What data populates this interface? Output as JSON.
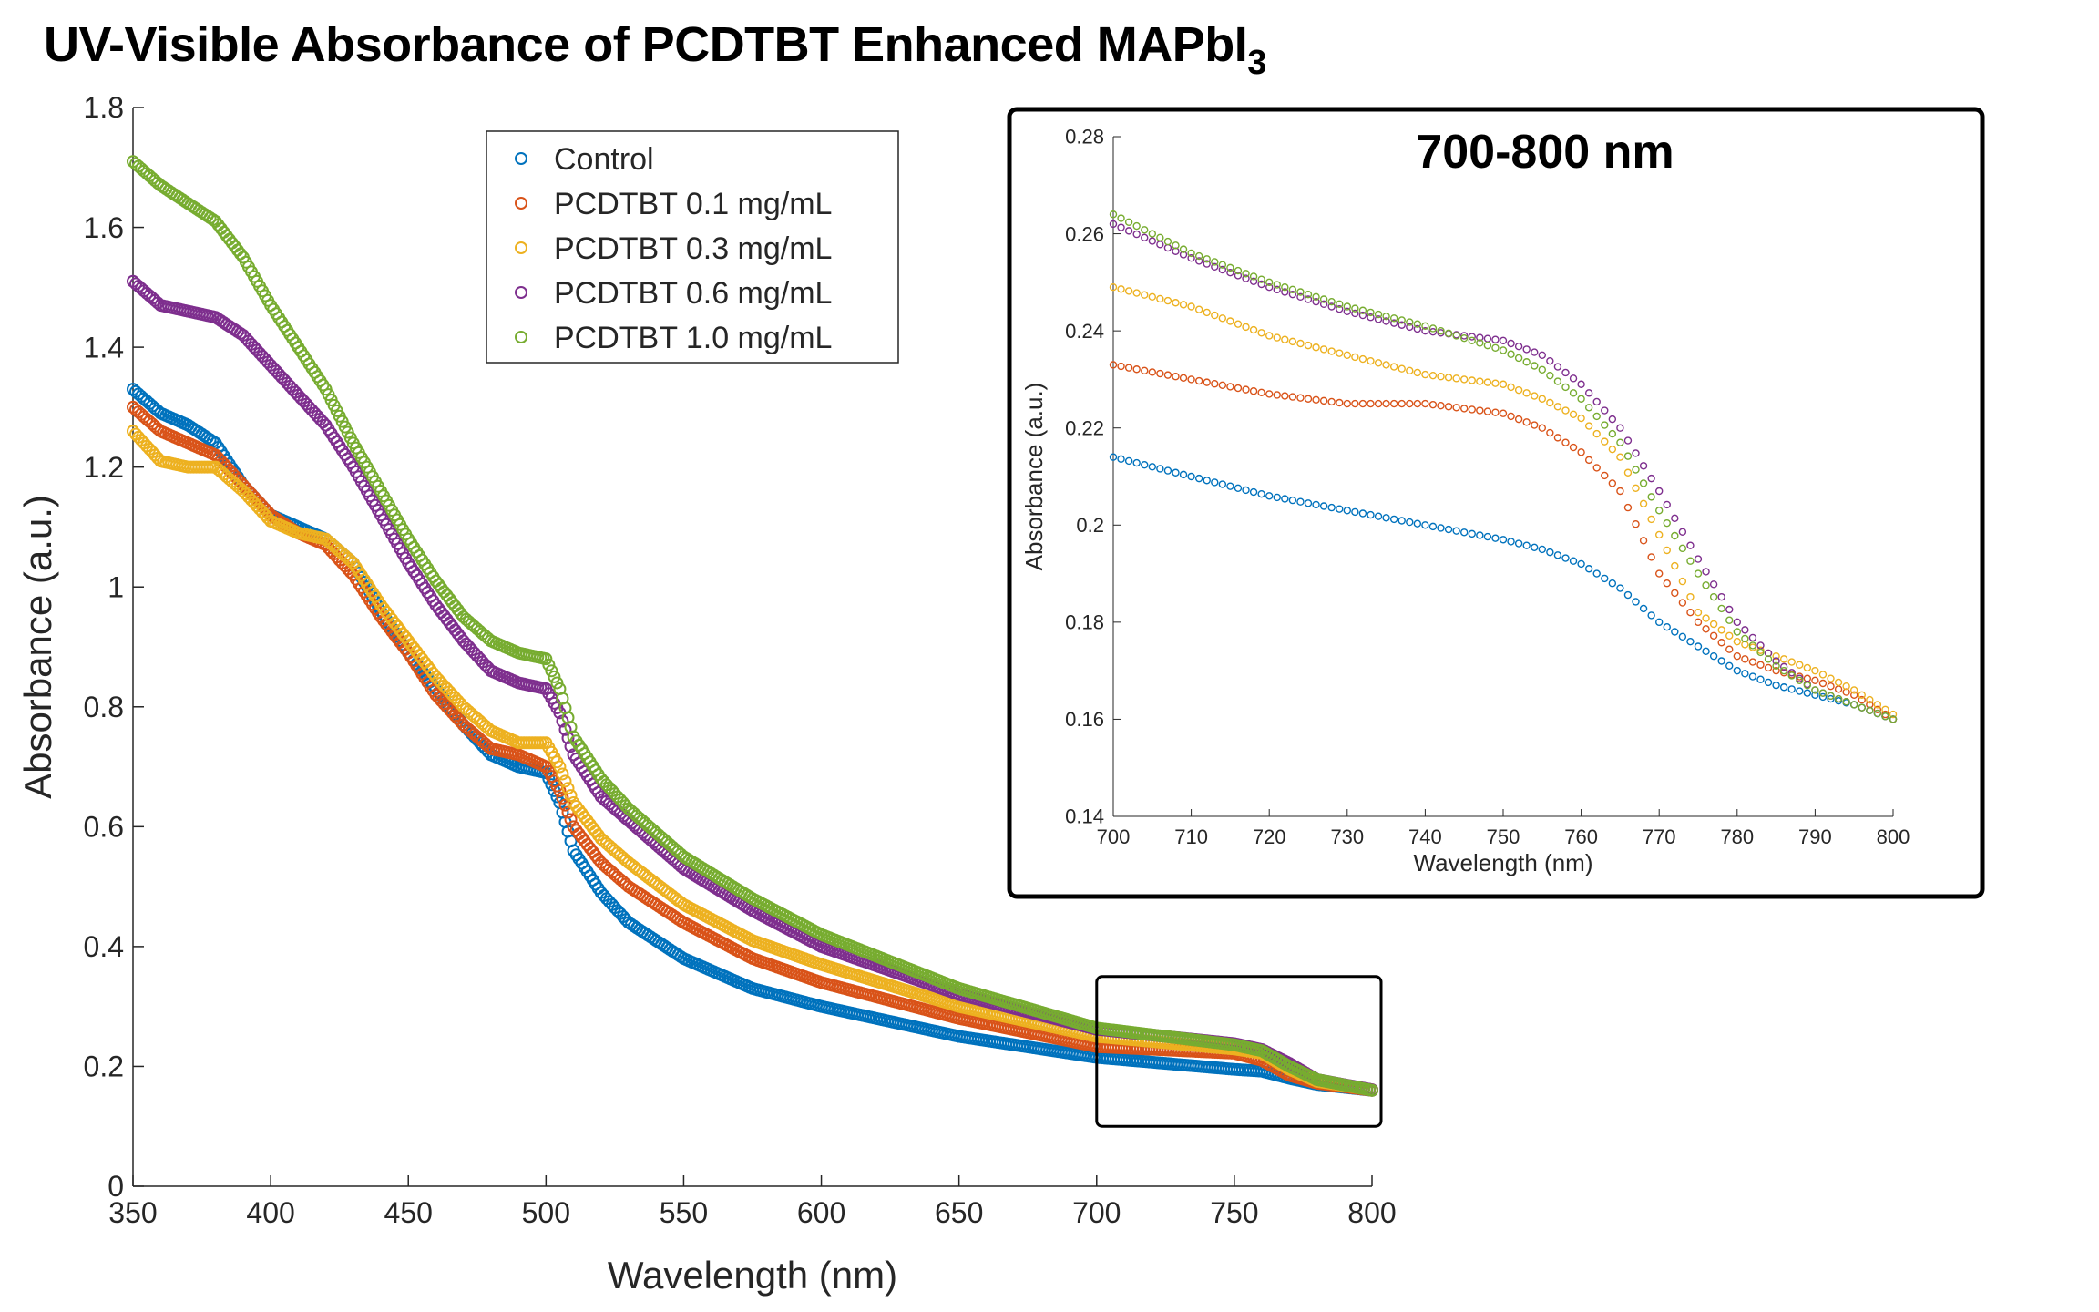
{
  "title": "UV-Visible Absorbance of PCDTBT Enhanced MAPbI",
  "title_subscript": "3",
  "colors": {
    "Control": "#0072BD",
    "PCDTBT 0.1 mg/mL": "#D95319",
    "PCDTBT 0.3 mg/mL": "#EDB120",
    "PCDTBT 0.6 mg/mL": "#7E2F8E",
    "PCDTBT 1.0 mg/mL": "#77AC30"
  },
  "chart_data": [
    {
      "type": "scatter",
      "title": "UV-Visible Absorbance of PCDTBT Enhanced MAPbI3",
      "xlabel": "Wavelength (nm)",
      "ylabel": "Absorbance (a.u.)",
      "xlim": [
        350,
        800
      ],
      "ylim": [
        0,
        1.8
      ],
      "xticks": [
        "350",
        "400",
        "450",
        "500",
        "550",
        "600",
        "650",
        "700",
        "750",
        "800"
      ],
      "yticks": [
        "0",
        "0.2",
        "0.4",
        "0.6",
        "0.8",
        "1",
        "1.2",
        "1.4",
        "1.6",
        "1.8"
      ],
      "legend_position": "top-center",
      "marker": "open-circle",
      "series": [
        {
          "name": "Control",
          "x": [
            350,
            360,
            370,
            380,
            390,
            400,
            410,
            420,
            430,
            440,
            450,
            460,
            470,
            480,
            490,
            500,
            505,
            510,
            520,
            530,
            550,
            575,
            600,
            650,
            700,
            750,
            760,
            770,
            780,
            800
          ],
          "y": [
            1.33,
            1.29,
            1.27,
            1.24,
            1.17,
            1.12,
            1.1,
            1.08,
            1.04,
            0.96,
            0.89,
            0.83,
            0.77,
            0.72,
            0.7,
            0.69,
            0.64,
            0.56,
            0.49,
            0.44,
            0.38,
            0.33,
            0.3,
            0.25,
            0.215,
            0.195,
            0.192,
            0.18,
            0.17,
            0.16
          ]
        },
        {
          "name": "PCDTBT 0.1 mg/mL",
          "x": [
            350,
            360,
            370,
            380,
            390,
            400,
            410,
            420,
            430,
            440,
            450,
            460,
            470,
            480,
            490,
            500,
            505,
            510,
            520,
            530,
            550,
            575,
            600,
            650,
            700,
            750,
            760,
            770,
            780,
            800
          ],
          "y": [
            1.3,
            1.26,
            1.24,
            1.22,
            1.17,
            1.12,
            1.09,
            1.07,
            1.02,
            0.95,
            0.89,
            0.82,
            0.77,
            0.73,
            0.72,
            0.7,
            0.66,
            0.6,
            0.54,
            0.5,
            0.44,
            0.38,
            0.34,
            0.28,
            0.233,
            0.222,
            0.21,
            0.185,
            0.172,
            0.16
          ]
        },
        {
          "name": "PCDTBT 0.3 mg/mL",
          "x": [
            350,
            360,
            370,
            380,
            390,
            400,
            410,
            420,
            430,
            440,
            450,
            460,
            470,
            480,
            490,
            500,
            505,
            510,
            520,
            530,
            550,
            575,
            600,
            650,
            700,
            750,
            760,
            770,
            780,
            800
          ],
          "y": [
            1.26,
            1.21,
            1.2,
            1.2,
            1.16,
            1.11,
            1.09,
            1.08,
            1.04,
            0.97,
            0.91,
            0.85,
            0.8,
            0.76,
            0.74,
            0.74,
            0.7,
            0.64,
            0.58,
            0.54,
            0.47,
            0.41,
            0.37,
            0.3,
            0.25,
            0.229,
            0.222,
            0.195,
            0.175,
            0.161
          ]
        },
        {
          "name": "PCDTBT 0.6 mg/mL",
          "x": [
            350,
            360,
            370,
            380,
            390,
            400,
            410,
            420,
            430,
            440,
            450,
            460,
            470,
            480,
            490,
            500,
            505,
            510,
            520,
            530,
            550,
            575,
            600,
            650,
            700,
            750,
            760,
            770,
            780,
            800
          ],
          "y": [
            1.51,
            1.47,
            1.46,
            1.45,
            1.42,
            1.37,
            1.32,
            1.27,
            1.2,
            1.12,
            1.04,
            0.97,
            0.91,
            0.86,
            0.84,
            0.83,
            0.79,
            0.72,
            0.65,
            0.61,
            0.53,
            0.46,
            0.4,
            0.32,
            0.262,
            0.238,
            0.228,
            0.205,
            0.178,
            0.161
          ]
        },
        {
          "name": "PCDTBT 1.0 mg/mL",
          "x": [
            350,
            360,
            370,
            380,
            390,
            400,
            410,
            420,
            430,
            440,
            450,
            460,
            470,
            480,
            490,
            500,
            505,
            510,
            520,
            530,
            550,
            575,
            600,
            650,
            700,
            750,
            760,
            770,
            780,
            800
          ],
          "y": [
            1.71,
            1.67,
            1.64,
            1.61,
            1.55,
            1.47,
            1.4,
            1.33,
            1.24,
            1.16,
            1.08,
            1.01,
            0.95,
            0.91,
            0.89,
            0.88,
            0.83,
            0.75,
            0.68,
            0.63,
            0.55,
            0.48,
            0.42,
            0.33,
            0.264,
            0.236,
            0.226,
            0.2,
            0.178,
            0.16
          ]
        }
      ]
    },
    {
      "type": "scatter",
      "title": "700-800 nm",
      "xlabel": "Wavelength (nm)",
      "ylabel": "Absorbance (a.u.)",
      "xlim": [
        700,
        800
      ],
      "ylim": [
        0.14,
        0.28
      ],
      "xticks": [
        "700",
        "710",
        "720",
        "730",
        "740",
        "750",
        "760",
        "770",
        "780",
        "790",
        "800"
      ],
      "yticks": [
        "0.14",
        "0.16",
        "0.18",
        "0.2",
        "0.22",
        "0.24",
        "0.26",
        "0.28"
      ],
      "marker": "open-circle",
      "series": [
        {
          "name": "Control",
          "x": [
            700,
            710,
            720,
            730,
            740,
            750,
            755,
            760,
            765,
            770,
            775,
            780,
            785,
            790,
            795,
            800
          ],
          "y": [
            0.214,
            0.21,
            0.206,
            0.203,
            0.2,
            0.197,
            0.195,
            0.192,
            0.187,
            0.18,
            0.175,
            0.17,
            0.167,
            0.165,
            0.163,
            0.16
          ]
        },
        {
          "name": "PCDTBT 0.1 mg/mL",
          "x": [
            700,
            710,
            720,
            730,
            740,
            750,
            755,
            760,
            765,
            770,
            775,
            780,
            785,
            790,
            795,
            800
          ],
          "y": [
            0.233,
            0.23,
            0.227,
            0.225,
            0.225,
            0.223,
            0.22,
            0.215,
            0.207,
            0.19,
            0.18,
            0.173,
            0.17,
            0.168,
            0.165,
            0.16
          ]
        },
        {
          "name": "PCDTBT 0.3 mg/mL",
          "x": [
            700,
            710,
            720,
            730,
            740,
            750,
            755,
            760,
            765,
            770,
            775,
            780,
            785,
            790,
            795,
            800
          ],
          "y": [
            0.249,
            0.245,
            0.239,
            0.235,
            0.231,
            0.229,
            0.226,
            0.222,
            0.214,
            0.198,
            0.182,
            0.176,
            0.173,
            0.17,
            0.166,
            0.161
          ]
        },
        {
          "name": "PCDTBT 0.6 mg/mL",
          "x": [
            700,
            710,
            720,
            730,
            740,
            750,
            755,
            760,
            765,
            770,
            775,
            780,
            785,
            790,
            795,
            800
          ],
          "y": [
            0.262,
            0.255,
            0.249,
            0.244,
            0.24,
            0.238,
            0.235,
            0.229,
            0.22,
            0.207,
            0.193,
            0.18,
            0.172,
            0.166,
            0.163,
            0.16
          ]
        },
        {
          "name": "PCDTBT 1.0 mg/mL",
          "x": [
            700,
            710,
            720,
            730,
            740,
            750,
            755,
            760,
            765,
            770,
            775,
            780,
            785,
            790,
            795,
            800
          ],
          "y": [
            0.264,
            0.256,
            0.25,
            0.245,
            0.241,
            0.236,
            0.232,
            0.226,
            0.217,
            0.203,
            0.19,
            0.178,
            0.171,
            0.166,
            0.163,
            0.16
          ]
        }
      ]
    }
  ]
}
